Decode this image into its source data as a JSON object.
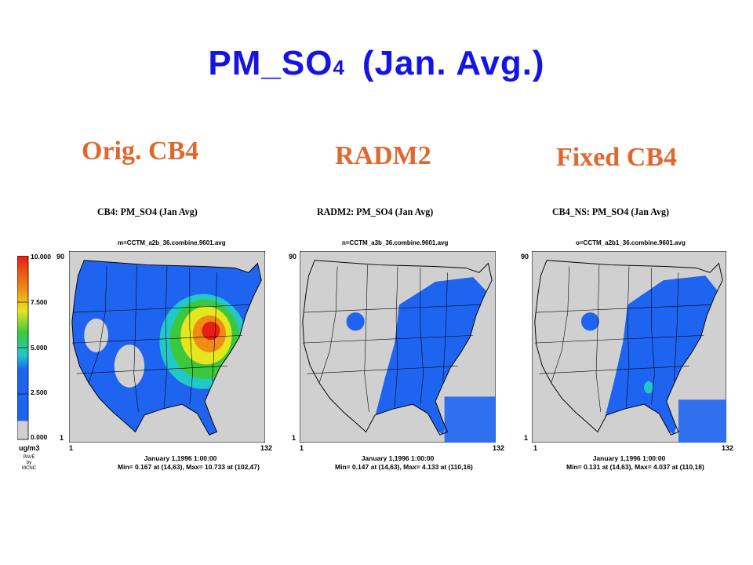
{
  "title": {
    "main": "PM_SO",
    "subscript": "4",
    "suffix": "(Jan. Avg.)"
  },
  "column_headings": [
    "Orig. CB4",
    "RADM2",
    "Fixed CB4"
  ],
  "panels": [
    {
      "title": "CB4:  PM_SO4 (Jan Avg)",
      "file": "m=CCTM_a2b_36.combine.9601.avg",
      "date": "January 1,1996 1:00:00",
      "stats": "Min=  0.167 at (14,63), Max= 10.733 at (102,47)"
    },
    {
      "title": "RADM2:  PM_SO4 (Jan Avg)",
      "file": "n=CCTM_a3b_36.combine.9601.avg",
      "date": "January 1,1996 1:00:00",
      "stats": "Min=  0.147 at (14,63), Max=  4.133 at (110,16)"
    },
    {
      "title": "CB4_NS:  PM_SO4 (Jan Avg)",
      "file": "o=CCTM_a2b1_36.combine.9601.avg",
      "date": "January 1,1996 1:00:00",
      "stats": "Min=  0.131 at (14,63), Max=  4.037 at (110,18)"
    }
  ],
  "axis": {
    "y_max": "90",
    "y_min": "1",
    "x_min": "1",
    "x_max": "132"
  },
  "legend": {
    "ticks": [
      "10.000",
      "7.500",
      "5.000",
      "2.500",
      "0.000"
    ],
    "unit": "ug/m3",
    "credit": [
      "PAVE",
      "by",
      "MCNC"
    ],
    "colors": [
      "#d0d0d0",
      "#1e64f0",
      "#22c8c8",
      "#3cc83c",
      "#e6e61e",
      "#f08c14",
      "#e61e14"
    ]
  }
}
